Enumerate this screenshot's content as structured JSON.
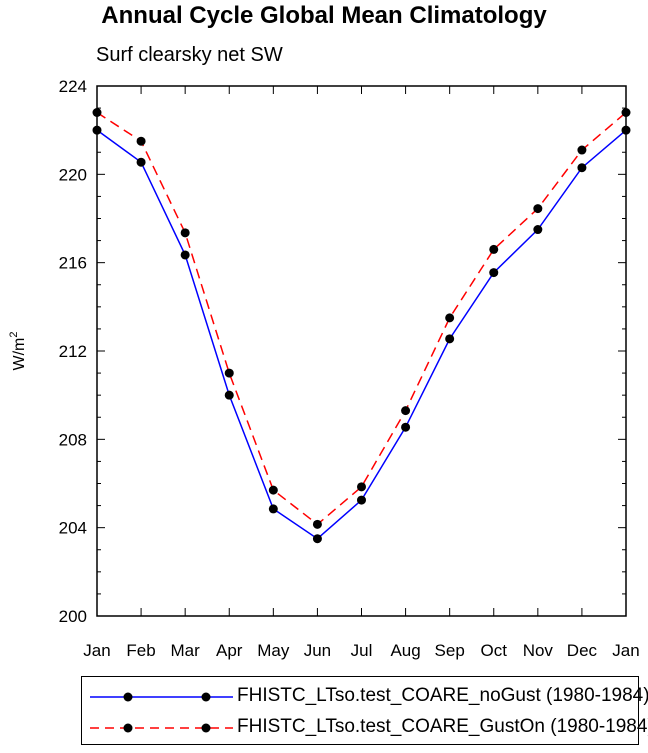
{
  "title": "Annual Cycle Global Mean Climatology",
  "subtitle": "Surf clearsky net SW",
  "chart_data": {
    "type": "line",
    "title": "Annual Cycle Global Mean Climatology",
    "subtitle": "Surf clearsky net SW",
    "xlabel": "",
    "ylabel": "W/m",
    "ylabel_superscript": "2",
    "categories": [
      "Jan",
      "Feb",
      "Mar",
      "Apr",
      "May",
      "Jun",
      "Jul",
      "Aug",
      "Sep",
      "Oct",
      "Nov",
      "Dec",
      "Jan"
    ],
    "ylim": [
      200,
      224
    ],
    "yticks": [
      200,
      204,
      208,
      212,
      216,
      220,
      224
    ],
    "ytick_labels": [
      "200",
      "204",
      "208",
      "212",
      "216",
      "220",
      "224"
    ],
    "grid": false,
    "legend_position": "bottom",
    "series": [
      {
        "name": "FHISTC_LTso.test_COARE_noGust (1980-1984)",
        "color": "#0000ff",
        "dash": "solid",
        "values": [
          222.0,
          220.55,
          216.35,
          210.0,
          204.85,
          203.5,
          205.25,
          208.55,
          212.55,
          215.55,
          217.5,
          220.3,
          222.0
        ]
      },
      {
        "name": "FHISTC_LTso.test_COARE_GustOn (1980-1984)",
        "color": "#ff0000",
        "dash": "dashed",
        "values": [
          222.8,
          221.5,
          217.35,
          211.0,
          205.7,
          204.15,
          205.85,
          209.3,
          213.5,
          216.6,
          218.45,
          221.1,
          222.8
        ]
      }
    ]
  }
}
